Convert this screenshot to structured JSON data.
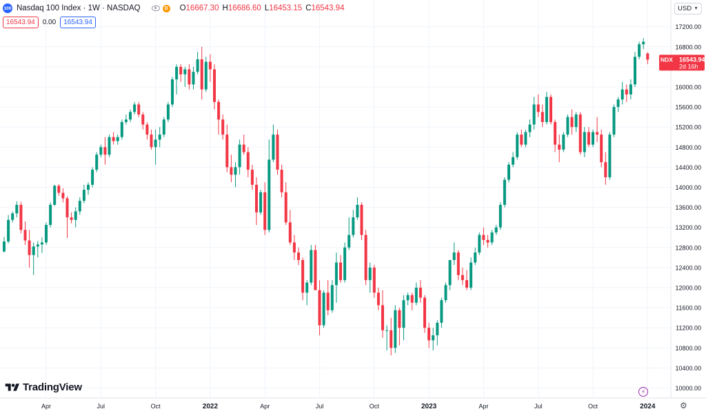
{
  "legend": {
    "symbol_badge": "100",
    "title": "Nasdaq 100 Index · 1W · NASDAQ",
    "d_badge": "D",
    "ohlc": {
      "o_label": "O",
      "o": "16667.30",
      "h_label": "H",
      "h": "16686.60",
      "l_label": "L",
      "l": "16453.15",
      "c_label": "C",
      "c": "16543.94"
    }
  },
  "indicator_row": {
    "value1": "16543.94",
    "value2": "0.00",
    "value3": "16543.94"
  },
  "currency": "USD",
  "price_tag": {
    "ticker": "NDX",
    "price": "16543.94",
    "countdown": "2d 16h"
  },
  "brand": "TradingView",
  "icons": {
    "eye": "eye-icon",
    "currency_dropdown": "chevron-down-icon",
    "lightning": "lightning-icon",
    "settings": "gear-icon"
  },
  "colors": {
    "up": "#089981",
    "down": "#f23645",
    "grid": "#f0f3fa",
    "text": "#131722",
    "accent": "#2962ff"
  },
  "chart_data": {
    "type": "candlestick",
    "title": "Nasdaq 100 Index",
    "interval": "1W",
    "exchange": "NASDAQ",
    "currency": "USD",
    "y_ticks": [
      10000,
      10400,
      10800,
      11200,
      11600,
      12000,
      12400,
      12800,
      13200,
      13600,
      14000,
      14400,
      14800,
      15200,
      15600,
      16000,
      16400,
      16800,
      17200
    ],
    "y_tick_labels": [
      "10000.00",
      "10400.00",
      "10800.00",
      "11200.00",
      "11600.00",
      "12000.00",
      "12400.00",
      "12800.00",
      "13200.00",
      "13600.00",
      "14000.00",
      "14400.00",
      "14800.00",
      "15200.00",
      "15600.00",
      "16000.00",
      "16400.00",
      "16800.00",
      "17200.00"
    ],
    "ylim": [
      9980,
      17480
    ],
    "x_ticks": [
      {
        "label": "Apr",
        "bar": 10,
        "bold": false
      },
      {
        "label": "Jul",
        "bar": 23,
        "bold": false
      },
      {
        "label": "Oct",
        "bar": 36,
        "bold": false
      },
      {
        "label": "2022",
        "bar": 49,
        "bold": true
      },
      {
        "label": "Apr",
        "bar": 62,
        "bold": false
      },
      {
        "label": "Jul",
        "bar": 75,
        "bold": false
      },
      {
        "label": "Oct",
        "bar": 88,
        "bold": false
      },
      {
        "label": "2023",
        "bar": 101,
        "bold": true
      },
      {
        "label": "Apr",
        "bar": 114,
        "bold": false
      },
      {
        "label": "Jul",
        "bar": 127,
        "bold": false
      },
      {
        "label": "Oct",
        "bar": 140,
        "bold": false
      },
      {
        "label": "2024",
        "bar": 153,
        "bold": true
      }
    ],
    "last_price": 16543.94,
    "ohlc": [
      [
        12720,
        13010,
        12700,
        12920
      ],
      [
        12920,
        13450,
        12880,
        13350
      ],
      [
        13350,
        13520,
        13300,
        13480
      ],
      [
        13480,
        13720,
        13400,
        13650
      ],
      [
        13650,
        13710,
        13080,
        13150
      ],
      [
        13150,
        13320,
        12850,
        12940
      ],
      [
        12940,
        13150,
        12400,
        12650
      ],
      [
        12650,
        12900,
        12250,
        12820
      ],
      [
        12820,
        12930,
        12600,
        12860
      ],
      [
        12860,
        13000,
        12690,
        12900
      ],
      [
        12900,
        13300,
        12850,
        13250
      ],
      [
        13250,
        13700,
        13200,
        13650
      ],
      [
        13650,
        14050,
        13630,
        14030
      ],
      [
        14030,
        14060,
        13830,
        13890
      ],
      [
        13890,
        13980,
        13700,
        13780
      ],
      [
        13780,
        13820,
        12990,
        13400
      ],
      [
        13400,
        13500,
        13280,
        13350
      ],
      [
        13350,
        13600,
        13200,
        13520
      ],
      [
        13520,
        13800,
        13450,
        13730
      ],
      [
        13730,
        14050,
        13680,
        13950
      ],
      [
        13950,
        14100,
        13850,
        14050
      ],
      [
        14050,
        14400,
        14000,
        14350
      ],
      [
        14350,
        14700,
        14300,
        14650
      ],
      [
        14650,
        14850,
        14600,
        14800
      ],
      [
        14800,
        15000,
        14450,
        14650
      ],
      [
        14650,
        15050,
        14600,
        15000
      ],
      [
        15000,
        15100,
        14850,
        14920
      ],
      [
        14920,
        15050,
        14850,
        15000
      ],
      [
        15000,
        15350,
        14950,
        15300
      ],
      [
        15300,
        15450,
        15250,
        15350
      ],
      [
        15350,
        15550,
        15300,
        15500
      ],
      [
        15500,
        15700,
        15450,
        15650
      ],
      [
        15650,
        15700,
        15400,
        15450
      ],
      [
        15450,
        15500,
        15150,
        15250
      ],
      [
        15250,
        15300,
        14950,
        15050
      ],
      [
        15050,
        15150,
        14750,
        14800
      ],
      [
        14800,
        15150,
        14450,
        14950
      ],
      [
        14950,
        15200,
        14800,
        15050
      ],
      [
        15050,
        15400,
        15000,
        15350
      ],
      [
        15350,
        15700,
        15300,
        15650
      ],
      [
        15650,
        16200,
        15600,
        16150
      ],
      [
        16150,
        16450,
        15850,
        16400
      ],
      [
        16400,
        16450,
        16100,
        16250
      ],
      [
        16250,
        16400,
        16000,
        16350
      ],
      [
        16350,
        16450,
        15950,
        16050
      ],
      [
        16050,
        16400,
        15950,
        16300
      ],
      [
        16300,
        16700,
        16250,
        16550
      ],
      [
        16550,
        16800,
        15750,
        15950
      ],
      [
        15950,
        16600,
        15900,
        16500
      ],
      [
        16500,
        16650,
        16100,
        16350
      ],
      [
        16350,
        16450,
        15550,
        15700
      ],
      [
        15700,
        15750,
        15050,
        15350
      ],
      [
        15350,
        15450,
        14950,
        15050
      ],
      [
        15050,
        15250,
        14300,
        14400
      ],
      [
        14400,
        14650,
        14100,
        14250
      ],
      [
        14250,
        14500,
        14000,
        14400
      ],
      [
        14400,
        14950,
        14250,
        14850
      ],
      [
        14850,
        15050,
        14650,
        14700
      ],
      [
        14700,
        14800,
        14200,
        14350
      ],
      [
        14350,
        14450,
        13950,
        14050
      ],
      [
        14050,
        14200,
        13250,
        13500
      ],
      [
        13500,
        13950,
        13450,
        13900
      ],
      [
        13900,
        14100,
        13050,
        13150
      ],
      [
        13150,
        14950,
        13100,
        14550
      ],
      [
        14550,
        15250,
        14500,
        15050
      ],
      [
        15050,
        15150,
        14250,
        14350
      ],
      [
        14350,
        14450,
        13800,
        13900
      ],
      [
        13900,
        14100,
        13250,
        13300
      ],
      [
        13300,
        13550,
        12850,
        12900
      ],
      [
        12900,
        13050,
        12550,
        12700
      ],
      [
        12700,
        12800,
        12450,
        12550
      ],
      [
        12550,
        12600,
        11750,
        11900
      ],
      [
        11900,
        12150,
        11650,
        12100
      ],
      [
        12100,
        12850,
        12050,
        12750
      ],
      [
        12750,
        12850,
        11950,
        11950
      ],
      [
        11950,
        12150,
        11050,
        11250
      ],
      [
        11250,
        11950,
        11200,
        11900
      ],
      [
        11900,
        12150,
        11450,
        11550
      ],
      [
        11550,
        12150,
        11500,
        12050
      ],
      [
        12050,
        12700,
        11700,
        12500
      ],
      [
        12500,
        12650,
        12100,
        12150
      ],
      [
        12150,
        12900,
        12100,
        12800
      ],
      [
        12800,
        13400,
        12750,
        13050
      ],
      [
        13050,
        13550,
        13000,
        13400
      ],
      [
        13400,
        13800,
        13350,
        13650
      ],
      [
        13650,
        13700,
        12950,
        13050
      ],
      [
        13050,
        13150,
        12050,
        12150
      ],
      [
        12150,
        12500,
        11900,
        12400
      ],
      [
        12400,
        12450,
        11800,
        11900
      ],
      [
        11900,
        12000,
        11550,
        11650
      ],
      [
        11650,
        11950,
        11000,
        11150
      ],
      [
        11150,
        11250,
        10750,
        11150
      ],
      [
        11150,
        11400,
        10650,
        10800
      ],
      [
        10800,
        11650,
        10700,
        11550
      ],
      [
        11550,
        11600,
        10850,
        11200
      ],
      [
        11200,
        11850,
        10950,
        11750
      ],
      [
        11750,
        11900,
        11650,
        11850
      ],
      [
        11850,
        11900,
        11550,
        11700
      ],
      [
        11700,
        12100,
        11650,
        12000
      ],
      [
        12000,
        12150,
        11700,
        11800
      ],
      [
        11800,
        11850,
        11100,
        11200
      ],
      [
        11200,
        11300,
        10800,
        10950
      ],
      [
        10950,
        11200,
        10750,
        11050
      ],
      [
        11050,
        11350,
        10850,
        11300
      ],
      [
        11300,
        11800,
        11200,
        11750
      ],
      [
        11750,
        12100,
        11700,
        12050
      ],
      [
        12050,
        12550,
        11950,
        12550
      ],
      [
        12550,
        12900,
        12450,
        12700
      ],
      [
        12700,
        12750,
        12150,
        12250
      ],
      [
        12250,
        12400,
        12050,
        12150
      ],
      [
        12150,
        12350,
        11950,
        12000
      ],
      [
        12000,
        12600,
        11950,
        12500
      ],
      [
        12500,
        12800,
        12450,
        12700
      ],
      [
        12700,
        13100,
        12650,
        13050
      ],
      [
        13050,
        13200,
        12850,
        12950
      ],
      [
        12950,
        13050,
        12800,
        12900
      ],
      [
        12900,
        13150,
        12850,
        13100
      ],
      [
        13100,
        13250,
        13050,
        13200
      ],
      [
        13200,
        13700,
        13150,
        13650
      ],
      [
        13650,
        14200,
        13600,
        14150
      ],
      [
        14150,
        14500,
        14100,
        14450
      ],
      [
        14450,
        14700,
        14400,
        14600
      ],
      [
        14600,
        15100,
        14550,
        15050
      ],
      [
        15050,
        15150,
        14800,
        14850
      ],
      [
        14850,
        15150,
        14800,
        15100
      ],
      [
        15100,
        15350,
        15000,
        15250
      ],
      [
        15250,
        15800,
        15150,
        15650
      ],
      [
        15650,
        15850,
        15400,
        15500
      ],
      [
        15500,
        15650,
        15200,
        15300
      ],
      [
        15300,
        15900,
        15250,
        15800
      ],
      [
        15800,
        15850,
        15250,
        15300
      ],
      [
        15300,
        15350,
        14700,
        14850
      ],
      [
        14850,
        15050,
        14500,
        14750
      ],
      [
        14750,
        15100,
        14700,
        15050
      ],
      [
        15050,
        15450,
        15000,
        15400
      ],
      [
        15400,
        15550,
        15050,
        15200
      ],
      [
        15200,
        15500,
        15100,
        15450
      ],
      [
        15450,
        15500,
        14650,
        14700
      ],
      [
        14700,
        15200,
        14600,
        15100
      ],
      [
        15100,
        15200,
        14800,
        14850
      ],
      [
        14850,
        15150,
        14800,
        15100
      ],
      [
        15100,
        15400,
        14900,
        15050
      ],
      [
        15050,
        15150,
        14400,
        14500
      ],
      [
        14500,
        14700,
        14050,
        14200
      ],
      [
        14200,
        15100,
        14150,
        15050
      ],
      [
        15050,
        15650,
        15000,
        15600
      ],
      [
        15600,
        15800,
        15500,
        15750
      ],
      [
        15750,
        16100,
        15650,
        15950
      ],
      [
        15950,
        16050,
        15700,
        15850
      ],
      [
        15850,
        16150,
        15750,
        16050
      ],
      [
        16050,
        16700,
        16000,
        16600
      ],
      [
        16600,
        16900,
        16550,
        16850
      ],
      [
        16850,
        16970,
        16750,
        16900
      ],
      [
        16667.3,
        16686.6,
        16453.15,
        16543.94
      ]
    ]
  }
}
